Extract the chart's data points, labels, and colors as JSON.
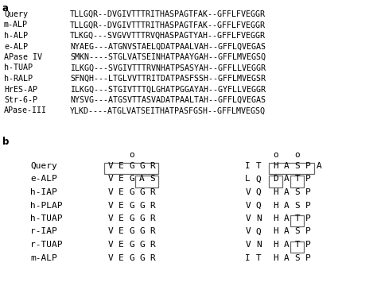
{
  "section_a_label": "a",
  "section_b_label": "b",
  "part_a": {
    "rows": [
      {
        "name": "Query",
        "seq": "TLLGQR--DVGIVTTTRITHASPAGTFAK--GFFLFVEGGR"
      },
      {
        "name": "m-ALP",
        "seq": "TLLGQR--DVGIVTTTRITHASPAGTFAK--GFFLFVEGGR"
      },
      {
        "name": "h-ALP",
        "seq": "TLKGQ---SVGVVTTTRVQHASPAGTYAH--GFFLFVEGGR"
      },
      {
        "name": "e-ALP",
        "seq": "NYAEG---ATGNVSTAELQDATPAALVAH--GFFLQVEGAS"
      },
      {
        "name": "APase IV",
        "seq": "SMKN----STGLVATSEINHATPAAYGAH--GFFLMVEGSQ"
      },
      {
        "name": "h-TUAP",
        "seq": "ILKGQ---SVGIVTTTRVNHATPSASYAH--GFFLLVEGGR"
      },
      {
        "name": "h-RALP",
        "seq": "SFNQH---LTGLVVTTRITDATPASFSSH--GFFLMVEGSR"
      },
      {
        "name": "HrES-AP",
        "seq": "ILKGQ---STGIVTTTQLGHATPGGAYAH--GYFLLVEGGR"
      },
      {
        "name": "Str-6-P",
        "seq": "NYSVG---ATGSVTTASVADATPAALTAH--GFFLQVEGAS"
      },
      {
        "name": "APase-III",
        "seq": "YLKD----ATGLVATSEITHATPASFGSH--GFFLMVEGSQ"
      }
    ]
  },
  "part_b": {
    "left_group": {
      "rows": [
        {
          "name": "Query",
          "seq": [
            "V",
            "E",
            "G",
            "G",
            "R"
          ]
        },
        {
          "name": "e-ALP",
          "seq": [
            "V",
            "E",
            "G",
            "A",
            "S"
          ]
        },
        {
          "name": "h-IAP",
          "seq": [
            "V",
            "E",
            "G",
            "G",
            "R"
          ]
        },
        {
          "name": "h-PLAP",
          "seq": [
            "V",
            "E",
            "G",
            "G",
            "R"
          ]
        },
        {
          "name": "h-TUAP",
          "seq": [
            "V",
            "E",
            "G",
            "G",
            "R"
          ]
        },
        {
          "name": "r-IAP",
          "seq": [
            "V",
            "E",
            "G",
            "G",
            "R"
          ]
        },
        {
          "name": "r-TUAP",
          "seq": [
            "V",
            "E",
            "G",
            "G",
            "R"
          ]
        },
        {
          "name": "m-ALP",
          "seq": [
            "V",
            "E",
            "G",
            "G",
            "R"
          ]
        }
      ]
    },
    "right_group": {
      "rows": [
        {
          "name": "Query",
          "pre": [
            "I",
            "T"
          ],
          "seq": [
            "H",
            "A",
            "S",
            "P"
          ],
          "post": [
            "A"
          ]
        },
        {
          "name": "e-ALP",
          "pre": [
            "L",
            "Q"
          ],
          "seq": [
            "D",
            "A",
            "T",
            "P"
          ],
          "post": []
        },
        {
          "name": "h-IAP",
          "pre": [
            "V",
            "Q"
          ],
          "seq": [
            "H",
            "A",
            "S",
            "P"
          ],
          "post": []
        },
        {
          "name": "h-PLAP",
          "pre": [
            "V",
            "Q"
          ],
          "seq": [
            "H",
            "A",
            "S",
            "P"
          ],
          "post": []
        },
        {
          "name": "h-TUAP",
          "pre": [
            "V",
            "N"
          ],
          "seq": [
            "H",
            "A",
            "T",
            "P"
          ],
          "post": []
        },
        {
          "name": "r-IAP",
          "pre": [
            "V",
            "Q"
          ],
          "seq": [
            "H",
            "A",
            "S",
            "P"
          ],
          "post": []
        },
        {
          "name": "r-TUAP",
          "pre": [
            "V",
            "N"
          ],
          "seq": [
            "H",
            "A",
            "T",
            "P"
          ],
          "post": []
        },
        {
          "name": "m-ALP",
          "pre": [
            "I",
            "T"
          ],
          "seq": [
            "H",
            "A",
            "S",
            "P"
          ],
          "post": []
        }
      ]
    }
  },
  "bg_color": "white",
  "text_color": "black"
}
